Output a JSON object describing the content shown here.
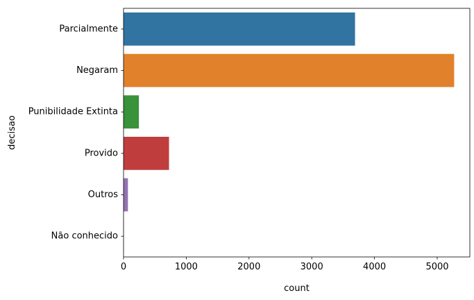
{
  "chart_data": {
    "type": "bar",
    "orientation": "horizontal",
    "xlabel": "count",
    "ylabel": "decisao",
    "xlim": [
      0,
      5520
    ],
    "xticks": [
      0,
      1000,
      2000,
      3000,
      4000,
      5000
    ],
    "grid": false,
    "categories": [
      "Parcialmente",
      "Negaram",
      "Punibilidade Extinta",
      "Provido",
      "Outros",
      "Não conhecido"
    ],
    "values": [
      3690,
      5270,
      245,
      725,
      70,
      3
    ],
    "colors": [
      "#3274a1",
      "#e1812c",
      "#3a923a",
      "#c03d3e",
      "#9372b2",
      "#845b53"
    ]
  }
}
